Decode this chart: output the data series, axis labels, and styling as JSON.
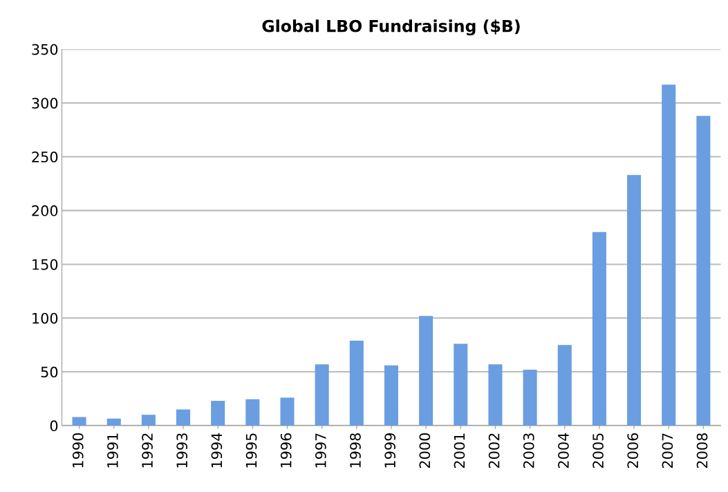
{
  "chart_data": {
    "type": "bar",
    "title": "Global LBO Fundraising ($B)",
    "categories": [
      "1990",
      "1991",
      "1992",
      "1993",
      "1994",
      "1995",
      "1996",
      "1997",
      "1998",
      "1999",
      "2000",
      "2001",
      "2002",
      "2003",
      "2004",
      "2005",
      "2006",
      "2007",
      "2008"
    ],
    "values": [
      8,
      6.5,
      10,
      15,
      23,
      24.5,
      26,
      57,
      79,
      56,
      102,
      76,
      57,
      52,
      75,
      180,
      233,
      317,
      288
    ],
    "color": "#6a9ee0",
    "ylim": [
      0,
      350
    ],
    "yticks": [
      0,
      50,
      100,
      150,
      200,
      250,
      300,
      350
    ],
    "grid": "y"
  }
}
